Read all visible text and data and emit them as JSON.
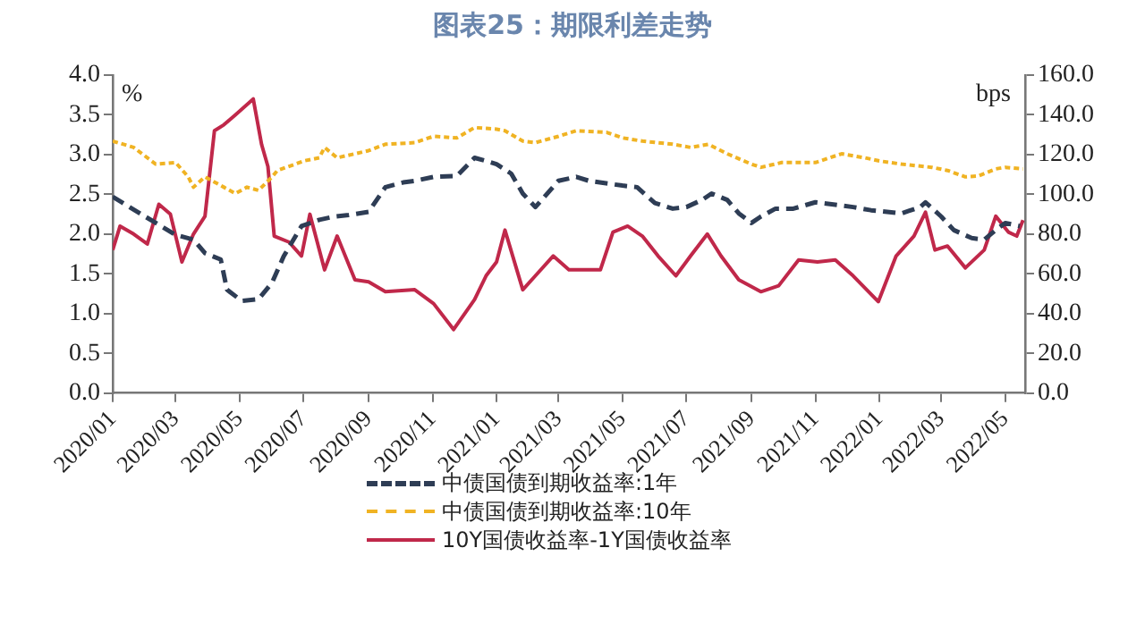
{
  "chart_data": {
    "type": "line",
    "title": "图表25：期限利差走势",
    "ylabel": "%",
    "y2label": "bps",
    "xlim": [
      "2020-01-01",
      "2022-05-20"
    ],
    "xticks": [
      {
        "value": "2020-01",
        "label": "2020/01"
      },
      {
        "value": "2020-03",
        "label": "2020/03"
      },
      {
        "value": "2020-05",
        "label": "2020/05"
      },
      {
        "value": "2020-07",
        "label": "2020/07"
      },
      {
        "value": "2020-09",
        "label": "2020/09"
      },
      {
        "value": "2020-11",
        "label": "2020/11"
      },
      {
        "value": "2021-01",
        "label": "2021/01"
      },
      {
        "value": "2021-03",
        "label": "2021/03"
      },
      {
        "value": "2021-05",
        "label": "2021/05"
      },
      {
        "value": "2021-07",
        "label": "2021/07"
      },
      {
        "value": "2021-09",
        "label": "2021/09"
      },
      {
        "value": "2021-11",
        "label": "2021/11"
      },
      {
        "value": "2022-01",
        "label": "2022/01"
      },
      {
        "value": "2022-03",
        "label": "2022/03"
      },
      {
        "value": "2022-05",
        "label": "2022/05"
      }
    ],
    "ylim": [
      0,
      4
    ],
    "yticks": [
      {
        "value": 0,
        "label": "0.0"
      },
      {
        "value": 0.5,
        "label": "0.5"
      },
      {
        "value": 1,
        "label": "1.0"
      },
      {
        "value": 1.5,
        "label": "1.5"
      },
      {
        "value": 2,
        "label": "2.0"
      },
      {
        "value": 2.5,
        "label": "2.5"
      },
      {
        "value": 3,
        "label": "3.0"
      },
      {
        "value": 3.5,
        "label": "3.5"
      },
      {
        "value": 4,
        "label": "4.0"
      }
    ],
    "y2lim": [
      0,
      160
    ],
    "y2ticks": [
      {
        "value": 0,
        "label": "0.0"
      },
      {
        "value": 20,
        "label": "20.0"
      },
      {
        "value": 40,
        "label": "40.0"
      },
      {
        "value": 60,
        "label": "60.0"
      },
      {
        "value": 80,
        "label": "80.0"
      },
      {
        "value": 100,
        "label": "100.0"
      },
      {
        "value": 120,
        "label": "120.0"
      },
      {
        "value": 140,
        "label": "140.0"
      },
      {
        "value": 160,
        "label": "160.0"
      }
    ],
    "grid": false,
    "legend": "bottom",
    "marker": "none",
    "series": [
      {
        "name": "中债国债到期收益率:1年",
        "color": "#2e3d55",
        "line_style": "dashed",
        "x": [
          "2020-01-01",
          "2020-02-01",
          "2020-03-01",
          "2020-03-18",
          "2020-03-29",
          "2020-04-13",
          "2020-04-19",
          "2020-05-03",
          "2020-05-19",
          "2020-06-01",
          "2020-06-12",
          "2020-06-29",
          "2020-07-16",
          "2020-07-30",
          "2020-08-13",
          "2020-09-01",
          "2020-09-17",
          "2020-10-04",
          "2020-10-15",
          "2020-11-02",
          "2020-11-24",
          "2020-12-11",
          "2020-12-22",
          "2021-01-01",
          "2021-01-15",
          "2021-01-26",
          "2021-02-07",
          "2021-03-01",
          "2021-03-18",
          "2021-03-30",
          "2021-05-01",
          "2021-05-15",
          "2021-06-01",
          "2021-06-18",
          "2021-07-01",
          "2021-07-16",
          "2021-07-25",
          "2021-08-09",
          "2021-08-20",
          "2021-09-01",
          "2021-09-10",
          "2021-09-24",
          "2021-10-11",
          "2021-11-01",
          "2021-11-20",
          "2021-12-07",
          "2021-12-24",
          "2022-01-01",
          "2022-01-22",
          "2022-02-09",
          "2022-02-14",
          "2022-03-01",
          "2022-03-13",
          "2022-03-30",
          "2022-04-11",
          "2022-04-22",
          "2022-05-01",
          "2022-05-15"
        ],
        "values": [
          2.47,
          2.22,
          1.99,
          1.93,
          1.76,
          1.68,
          1.3,
          1.16,
          1.18,
          1.39,
          1.72,
          2.1,
          2.18,
          2.22,
          2.24,
          2.28,
          2.59,
          2.65,
          2.67,
          2.72,
          2.73,
          2.96,
          2.92,
          2.88,
          2.76,
          2.51,
          2.34,
          2.67,
          2.72,
          2.67,
          2.61,
          2.59,
          2.39,
          2.32,
          2.34,
          2.43,
          2.51,
          2.43,
          2.26,
          2.14,
          2.22,
          2.32,
          2.32,
          2.4,
          2.37,
          2.34,
          2.3,
          2.29,
          2.26,
          2.34,
          2.4,
          2.22,
          2.05,
          1.95,
          1.93,
          2.05,
          2.14,
          2.1
        ]
      },
      {
        "name": "中债国债到期收益率:10年",
        "color": "#f0b323",
        "line_style": "dotted",
        "x": [
          "2020-01-01",
          "2020-01-21",
          "2020-02-11",
          "2020-03-01",
          "2020-03-13",
          "2020-03-18",
          "2020-03-29",
          "2020-04-16",
          "2020-04-27",
          "2020-05-08",
          "2020-05-19",
          "2020-06-01",
          "2020-06-06",
          "2020-06-23",
          "2020-07-01",
          "2020-07-16",
          "2020-07-21",
          "2020-08-02",
          "2020-08-19",
          "2020-09-01",
          "2020-09-17",
          "2020-10-15",
          "2020-11-02",
          "2020-11-24",
          "2020-12-11",
          "2021-01-01",
          "2021-01-09",
          "2021-01-26",
          "2021-02-07",
          "2021-03-01",
          "2021-03-18",
          "2021-04-16",
          "2021-05-01",
          "2021-05-20",
          "2021-06-18",
          "2021-07-05",
          "2021-07-22",
          "2021-08-09",
          "2021-09-01",
          "2021-09-10",
          "2021-09-30",
          "2021-11-01",
          "2021-11-26",
          "2021-12-18",
          "2022-01-01",
          "2022-01-22",
          "2022-02-20",
          "2022-03-07",
          "2022-03-24",
          "2022-04-05",
          "2022-04-22",
          "2022-05-01",
          "2022-05-18"
        ],
        "values": [
          3.17,
          3.09,
          2.88,
          2.9,
          2.72,
          2.59,
          2.72,
          2.59,
          2.51,
          2.59,
          2.55,
          2.72,
          2.8,
          2.88,
          2.92,
          2.96,
          3.09,
          2.96,
          3.01,
          3.05,
          3.13,
          3.15,
          3.23,
          3.21,
          3.34,
          3.32,
          3.3,
          3.17,
          3.15,
          3.23,
          3.3,
          3.28,
          3.21,
          3.17,
          3.13,
          3.09,
          3.13,
          3.01,
          2.88,
          2.84,
          2.9,
          2.9,
          3.01,
          2.96,
          2.92,
          2.88,
          2.84,
          2.8,
          2.72,
          2.73,
          2.82,
          2.84,
          2.82
        ]
      },
      {
        "name": "10Y国债收益率-1Y国债收益率",
        "color": "#c0284a",
        "line_style": "solid",
        "axis": "y2",
        "x": [
          "2020-01-01",
          "2020-01-08",
          "2020-01-21",
          "2020-02-03",
          "2020-02-14",
          "2020-02-25",
          "2020-03-07",
          "2020-03-18",
          "2020-03-29",
          "2020-04-07",
          "2020-04-16",
          "2020-04-27",
          "2020-05-14",
          "2020-05-22",
          "2020-05-28",
          "2020-06-03",
          "2020-06-17",
          "2020-06-29",
          "2020-07-07",
          "2020-07-21",
          "2020-08-02",
          "2020-08-19",
          "2020-09-01",
          "2020-09-17",
          "2020-10-15",
          "2020-11-02",
          "2020-11-21",
          "2020-12-11",
          "2020-12-22",
          "2021-01-01",
          "2021-01-09",
          "2021-01-26",
          "2021-02-07",
          "2021-02-24",
          "2021-03-11",
          "2021-03-28",
          "2021-04-10",
          "2021-04-22",
          "2021-05-06",
          "2021-05-20",
          "2021-06-04",
          "2021-06-21",
          "2021-07-05",
          "2021-07-21",
          "2021-08-03",
          "2021-08-20",
          "2021-09-10",
          "2021-09-27",
          "2021-10-16",
          "2021-11-03",
          "2021-11-20",
          "2021-12-07",
          "2021-12-31",
          "2022-01-17",
          "2022-02-03",
          "2022-02-14",
          "2022-02-23",
          "2022-03-07",
          "2022-03-24",
          "2022-04-11",
          "2022-04-22",
          "2022-05-04",
          "2022-05-12",
          "2022-05-18"
        ],
        "values": [
          72,
          84,
          80,
          75,
          95,
          90,
          66,
          80,
          89,
          132,
          135,
          140,
          148,
          125,
          114,
          79,
          76,
          69,
          90,
          62,
          79,
          57,
          56,
          51,
          52,
          45,
          32,
          47,
          59,
          66,
          82,
          52,
          59,
          69,
          62,
          62,
          62,
          81,
          84,
          79,
          69,
          59,
          69,
          80,
          69,
          57,
          51,
          54,
          67,
          66,
          67,
          59,
          46,
          69,
          79,
          91,
          72,
          74,
          63,
          72,
          89,
          81,
          79,
          87
        ]
      }
    ]
  }
}
